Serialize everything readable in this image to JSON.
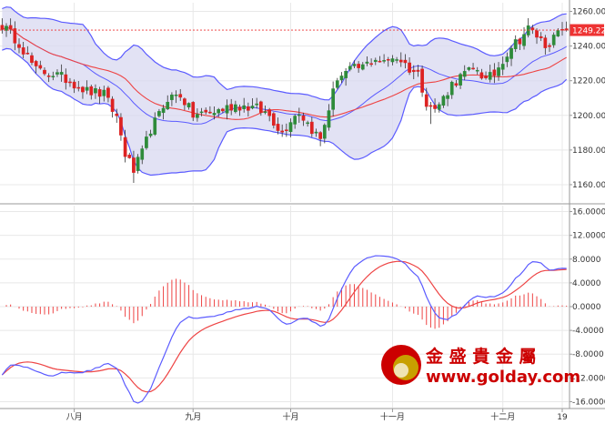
{
  "chart_data": [
    {
      "type": "candlestick",
      "panel": "price",
      "ylim": [
        1150,
        1265
      ],
      "y_ticks": [
        "1160.00",
        "1180.00",
        "1200.00",
        "1220.00",
        "1240.00",
        "1260.00"
      ],
      "y_ticks_values": [
        1160,
        1180,
        1200,
        1220,
        1240,
        1260
      ],
      "current_price_label": "1249.22",
      "current_price": 1249.22,
      "x_labels": [
        "八月",
        "九月",
        "十月",
        "十一月",
        "十二月",
        "19"
      ],
      "x_label_index": [
        17,
        45,
        68,
        92,
        118,
        132
      ],
      "bars": 134,
      "first_visible_open": 1252,
      "close_path": [
        [
          0,
          1252
        ],
        [
          4,
          1242
        ],
        [
          8,
          1226
        ],
        [
          12,
          1224
        ],
        [
          16,
          1220
        ],
        [
          20,
          1214
        ],
        [
          24,
          1212
        ],
        [
          27,
          1199
        ],
        [
          29,
          1178
        ],
        [
          31,
          1168
        ],
        [
          33,
          1178
        ],
        [
          35,
          1192
        ],
        [
          37,
          1200
        ],
        [
          39,
          1210
        ],
        [
          42,
          1212
        ],
        [
          45,
          1200
        ],
        [
          50,
          1202
        ],
        [
          55,
          1206
        ],
        [
          60,
          1204
        ],
        [
          63,
          1200
        ],
        [
          66,
          1190
        ],
        [
          68,
          1198
        ],
        [
          70,
          1202
        ],
        [
          73,
          1192
        ],
        [
          75,
          1186
        ],
        [
          77,
          1204
        ],
        [
          79,
          1222
        ],
        [
          82,
          1226
        ],
        [
          85,
          1228
        ],
        [
          88,
          1233
        ],
        [
          90,
          1230
        ],
        [
          92,
          1234
        ],
        [
          94,
          1232
        ],
        [
          96,
          1227
        ],
        [
          98,
          1224
        ],
        [
          100,
          1208
        ],
        [
          102,
          1203
        ],
        [
          104,
          1210
        ],
        [
          106,
          1218
        ],
        [
          109,
          1224
        ],
        [
          112,
          1227
        ],
        [
          114,
          1220
        ],
        [
          116,
          1224
        ],
        [
          118,
          1232
        ],
        [
          120,
          1240
        ],
        [
          122,
          1244
        ],
        [
          124,
          1250
        ],
        [
          126,
          1246
        ],
        [
          128,
          1241
        ],
        [
          130,
          1244
        ],
        [
          131,
          1248
        ],
        [
          132,
          1249.22
        ]
      ],
      "series": [
        {
          "name": "",
          "color": "#ff0000",
          "role": "moving-average"
        },
        {
          "name": "",
          "color": "#5b5bff",
          "role": "bollinger-bands",
          "fill": "#d8d8f0"
        }
      ],
      "colors": {
        "up": "#2e8b3a",
        "down": "#dd2222",
        "band_fill": "#d8d8f0",
        "band_line": "#5b5bff",
        "ma_line": "#ee4444",
        "price_line": "#ee3333"
      }
    },
    {
      "type": "macd",
      "panel": "indicator",
      "ylim": [
        -17,
        17
      ],
      "y_ticks": [
        "16.0000",
        "12.0000",
        "8.0000",
        "4.0000",
        "0.0000",
        "-4.0000",
        "-8.0000",
        "-12.0000",
        "-16.0000"
      ],
      "y_ticks_values": [
        16,
        12,
        8,
        4,
        0,
        -4,
        -8,
        -12,
        -16
      ],
      "colors": {
        "macd": "#5b5bff",
        "signal": "#ee4444",
        "hist": "#ee4444"
      }
    }
  ],
  "logo": {
    "brand_cn": "金 盛 貴 金 屬",
    "brand_url": "www.golday.com",
    "colors": {
      "red": "#cc0000",
      "gold": "#c8a000"
    }
  }
}
